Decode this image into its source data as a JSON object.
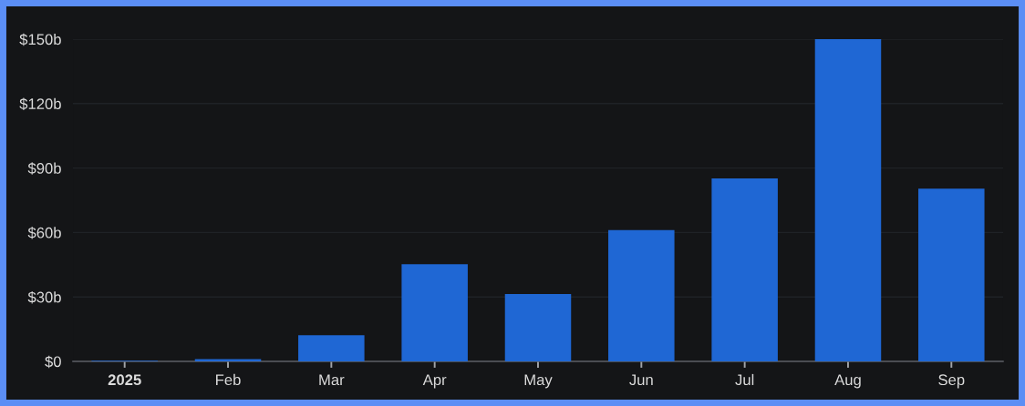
{
  "chart_data": {
    "type": "bar",
    "categories": [
      "2025",
      "Feb",
      "Mar",
      "Apr",
      "May",
      "Jun",
      "Jul",
      "Aug",
      "Sep"
    ],
    "values": [
      0.3,
      1.1,
      12.2,
      45.2,
      31.4,
      61.1,
      85.2,
      150,
      80.4
    ],
    "color": "#1f67d4",
    "ylim": [
      0,
      150
    ],
    "yticks": [
      {
        "value": 0,
        "label": "$0"
      },
      {
        "value": 30,
        "label": "$30b"
      },
      {
        "value": 60,
        "label": "$60b"
      },
      {
        "value": 90,
        "label": "$90b"
      },
      {
        "value": 120,
        "label": "$120b"
      },
      {
        "value": 150,
        "label": "$150b"
      }
    ],
    "grid": "y"
  }
}
